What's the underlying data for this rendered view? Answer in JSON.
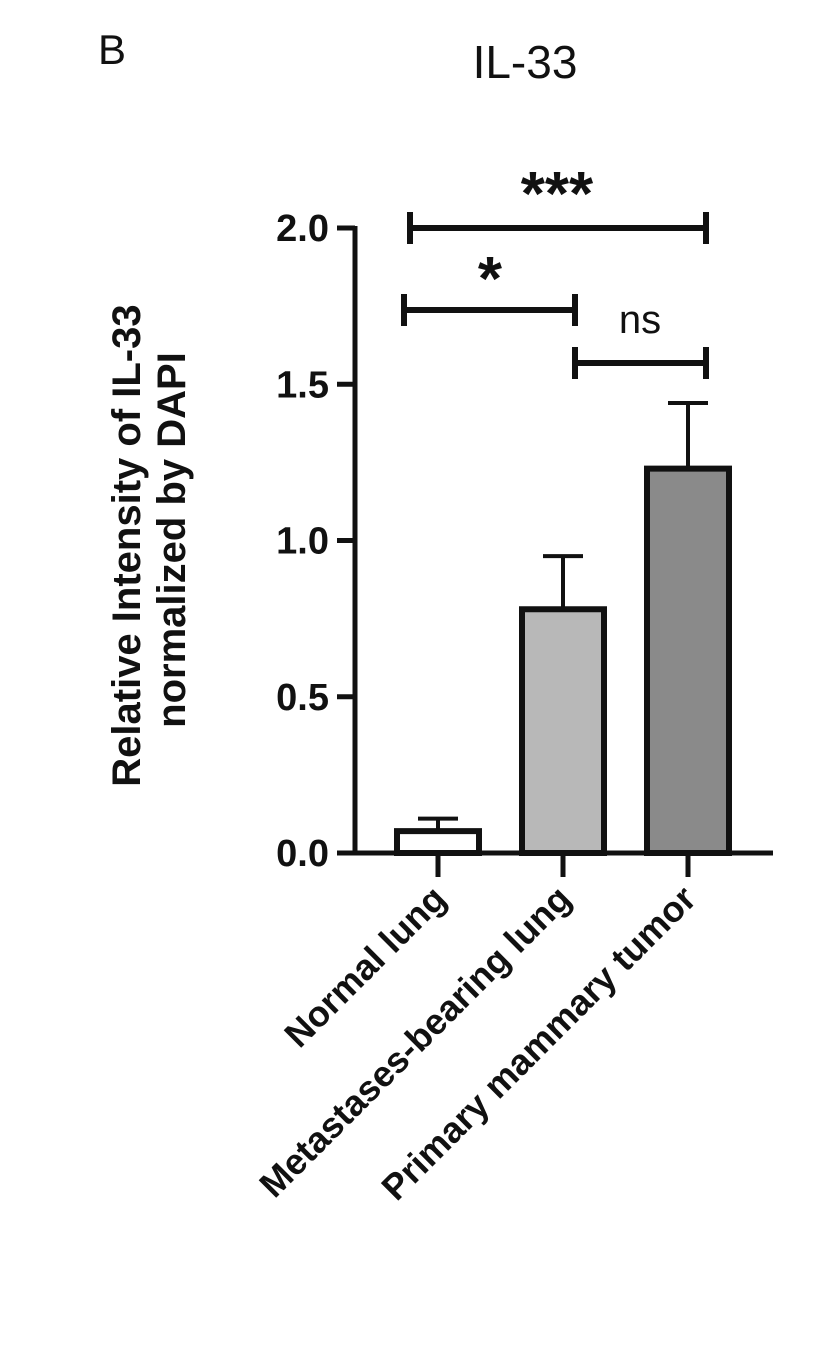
{
  "panel_label": "B",
  "chart_data": {
    "type": "bar",
    "title": "IL-33",
    "ylabel_lines": [
      "Relative Intensity of IL-33",
      "normalized by DAPI"
    ],
    "xlabel": "",
    "categories": [
      "Normal lung",
      "Metastases-bearing lung",
      "Primary mammary tumor"
    ],
    "values": [
      0.07,
      0.78,
      1.23
    ],
    "errors": [
      0.04,
      0.17,
      0.21
    ],
    "bar_colors": [
      "#ffffff",
      "#b8b8b8",
      "#8a8a8a"
    ],
    "ylim": [
      0,
      2.0
    ],
    "yticks": [
      "0.0",
      "0.5",
      "1.0",
      "1.5",
      "2.0"
    ],
    "grid": false,
    "significance": [
      {
        "from": 0,
        "to": 2,
        "label": "***",
        "y": 2.0
      },
      {
        "from": 0,
        "to": 1,
        "label": "*",
        "y": 1.75
      },
      {
        "from": 1,
        "to": 2,
        "label": "ns",
        "y": 1.5
      }
    ]
  }
}
